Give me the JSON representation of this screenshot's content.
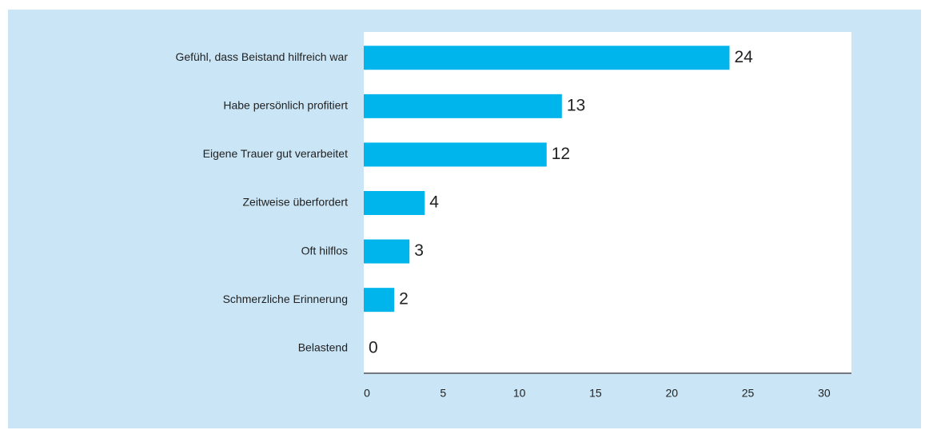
{
  "chart_data": {
    "type": "bar",
    "orientation": "horizontal",
    "categories": [
      "Gefühl, dass Beistand hilfreich war",
      "Habe persönlich profitiert",
      "Eigene Trauer gut verarbeitet",
      "Zeitweise überfordert",
      "Oft hilflos",
      "Schmerzliche Erinnerung",
      "Belastend"
    ],
    "values": [
      24,
      13,
      12,
      4,
      3,
      2,
      0
    ],
    "color": "#00b5ec",
    "xlim": [
      0,
      32
    ],
    "xticks": [
      0,
      5,
      10,
      15,
      20,
      25,
      30
    ]
  }
}
